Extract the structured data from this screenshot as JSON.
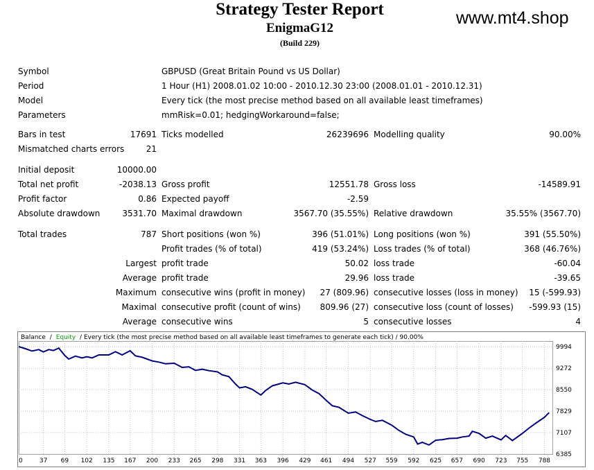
{
  "report": {
    "title": "Strategy Tester Report",
    "expert": "EnigmaG12",
    "build": "(Build 229)",
    "watermark": "www.mt4.shop"
  },
  "info": {
    "symbol_label": "Symbol",
    "symbol": "GBPUSD (Great Britain Pound vs US Dollar)",
    "period_label": "Period",
    "period": "1 Hour (H1) 2008.01.02 10:00 - 2010.12.30 23:00 (2008.01.01 - 2010.12.31)",
    "model_label": "Model",
    "model": "Every tick (the most precise method based on all available least timeframes)",
    "parameters_label": "Parameters",
    "parameters": "mmRisk=0.01; hedgingWorkaround=false;"
  },
  "stats": {
    "bars_label": "Bars in test",
    "bars": "17691",
    "ticks_label": "Ticks modelled",
    "ticks": "26239696",
    "quality_label": "Modelling quality",
    "quality": "90.00%",
    "mismatch_label": "Mismatched charts errors",
    "mismatch": "21",
    "deposit_label": "Initial deposit",
    "deposit": "10000.00",
    "net_label": "Total net profit",
    "net": "-2038.13",
    "gross_profit_label": "Gross profit",
    "gross_profit": "12551.78",
    "gross_loss_label": "Gross loss",
    "gross_loss": "-14589.91",
    "pf_label": "Profit factor",
    "pf": "0.86",
    "ep_label": "Expected payoff",
    "ep": "-2.59",
    "abs_dd_label": "Absolute drawdown",
    "abs_dd": "3531.70",
    "max_dd_label": "Maximal drawdown",
    "max_dd": "3567.70 (35.55%)",
    "rel_dd_label": "Relative drawdown",
    "rel_dd": "35.55% (3567.70)"
  },
  "trades": {
    "total_label": "Total trades",
    "total": "787",
    "short_label": "Short positions (won %)",
    "short": "396 (51.01%)",
    "long_label": "Long positions (won %)",
    "long": "391 (55.50%)",
    "profit_trades_label": "Profit trades (% of total)",
    "profit_trades": "419 (53.24%)",
    "loss_trades_label": "Loss trades (% of total)",
    "loss_trades": "368 (46.76%)",
    "largest_label": "Largest",
    "largest_profit_label": "profit trade",
    "largest_profit": "50.02",
    "largest_loss_label": "loss trade",
    "largest_loss": "-60.04",
    "average_label": "Average",
    "average_profit_label": "profit trade",
    "average_profit": "29.96",
    "average_loss_label": "loss trade",
    "average_loss": "-39.65",
    "maximum_label": "Maximum",
    "max_wins_label": "consecutive wins (profit in money)",
    "max_wins": "27 (809.96)",
    "max_losses_label": "consecutive losses (loss in money)",
    "max_losses": "15 (-599.93)",
    "maximal_label": "Maximal",
    "maximal_profit_label": "consecutive profit (count of wins)",
    "maximal_profit": "809.96 (27)",
    "maximal_loss_label": "consecutive loss (count of losses)",
    "maximal_loss": "-599.93 (15)",
    "average2_label": "Average",
    "avg_wins_label": "consecutive wins",
    "avg_wins": "5",
    "avg_losses_label": "consecutive losses",
    "avg_losses": "4"
  },
  "chart_data": {
    "type": "line",
    "legend_balance": "Balance",
    "legend_sep": "/",
    "legend_equity": "Equity",
    "legend_rest": "/ Every tick (the most precise method based on all available least timeframes to generate each tick) / 90.00%",
    "colors": {
      "line": "#00007f",
      "equity": "#00a000",
      "grid": "#c0c0c0",
      "frame": "#808080"
    },
    "xlim": [
      0,
      800
    ],
    "ylim": [
      6385,
      10186
    ],
    "x_ticks": [
      0,
      37,
      69,
      102,
      135,
      167,
      200,
      233,
      265,
      298,
      331,
      363,
      396,
      429,
      461,
      494,
      527,
      559,
      592,
      625,
      657,
      690,
      723,
      755,
      788
    ],
    "x_tick_labels": [
      "0",
      "37",
      "69",
      "102",
      "135",
      "167",
      "200",
      "233",
      "265",
      "298",
      "331",
      "363",
      "396",
      "429",
      "461",
      "494",
      "527",
      "559",
      "592",
      "625",
      "657",
      "690",
      "723",
      "755",
      "788"
    ],
    "y_ticks": [
      9994,
      9272,
      8550,
      7829,
      7107,
      6385
    ],
    "y_tick_labels": [
      "9994",
      "9272",
      "8550",
      "7829",
      "7107",
      "6385"
    ],
    "series": [
      {
        "x": [
          0,
          10,
          20,
          30,
          37,
          45,
          52,
          60,
          69,
          75,
          85,
          95,
          102,
          110,
          120,
          135,
          145,
          155,
          167,
          175,
          185,
          200,
          210,
          220,
          233,
          245,
          255,
          265,
          275,
          285,
          298,
          305,
          315,
          325,
          331,
          340,
          350,
          363,
          370,
          380,
          396,
          405,
          415,
          429,
          440,
          450,
          461,
          470,
          480,
          494,
          505,
          515,
          527,
          535,
          545,
          559,
          570,
          580,
          592,
          598,
          605,
          615,
          625,
          635,
          645,
          657,
          665,
          675,
          680,
          690,
          700,
          710,
          723,
          730,
          740,
          745,
          755,
          765,
          775,
          788,
          795
        ],
        "y": [
          10000,
          9930,
          9850,
          9900,
          9820,
          9900,
          9870,
          9950,
          9700,
          9580,
          9680,
          9620,
          9660,
          9620,
          9720,
          9720,
          9830,
          9720,
          9860,
          9690,
          9640,
          9520,
          9480,
          9420,
          9440,
          9300,
          9320,
          9200,
          9240,
          9190,
          9150,
          9050,
          8990,
          8740,
          8610,
          8650,
          8560,
          8370,
          8520,
          8680,
          8780,
          8740,
          8800,
          8720,
          8540,
          8420,
          8190,
          8010,
          7960,
          7760,
          7800,
          7680,
          7550,
          7480,
          7520,
          7360,
          7180,
          7050,
          6960,
          6720,
          6780,
          6690,
          6850,
          6870,
          6910,
          6920,
          6960,
          6990,
          7150,
          7080,
          6920,
          6990,
          6860,
          7010,
          6840,
          6920,
          7080,
          7260,
          7420,
          7620,
          7780
        ]
      }
    ]
  }
}
